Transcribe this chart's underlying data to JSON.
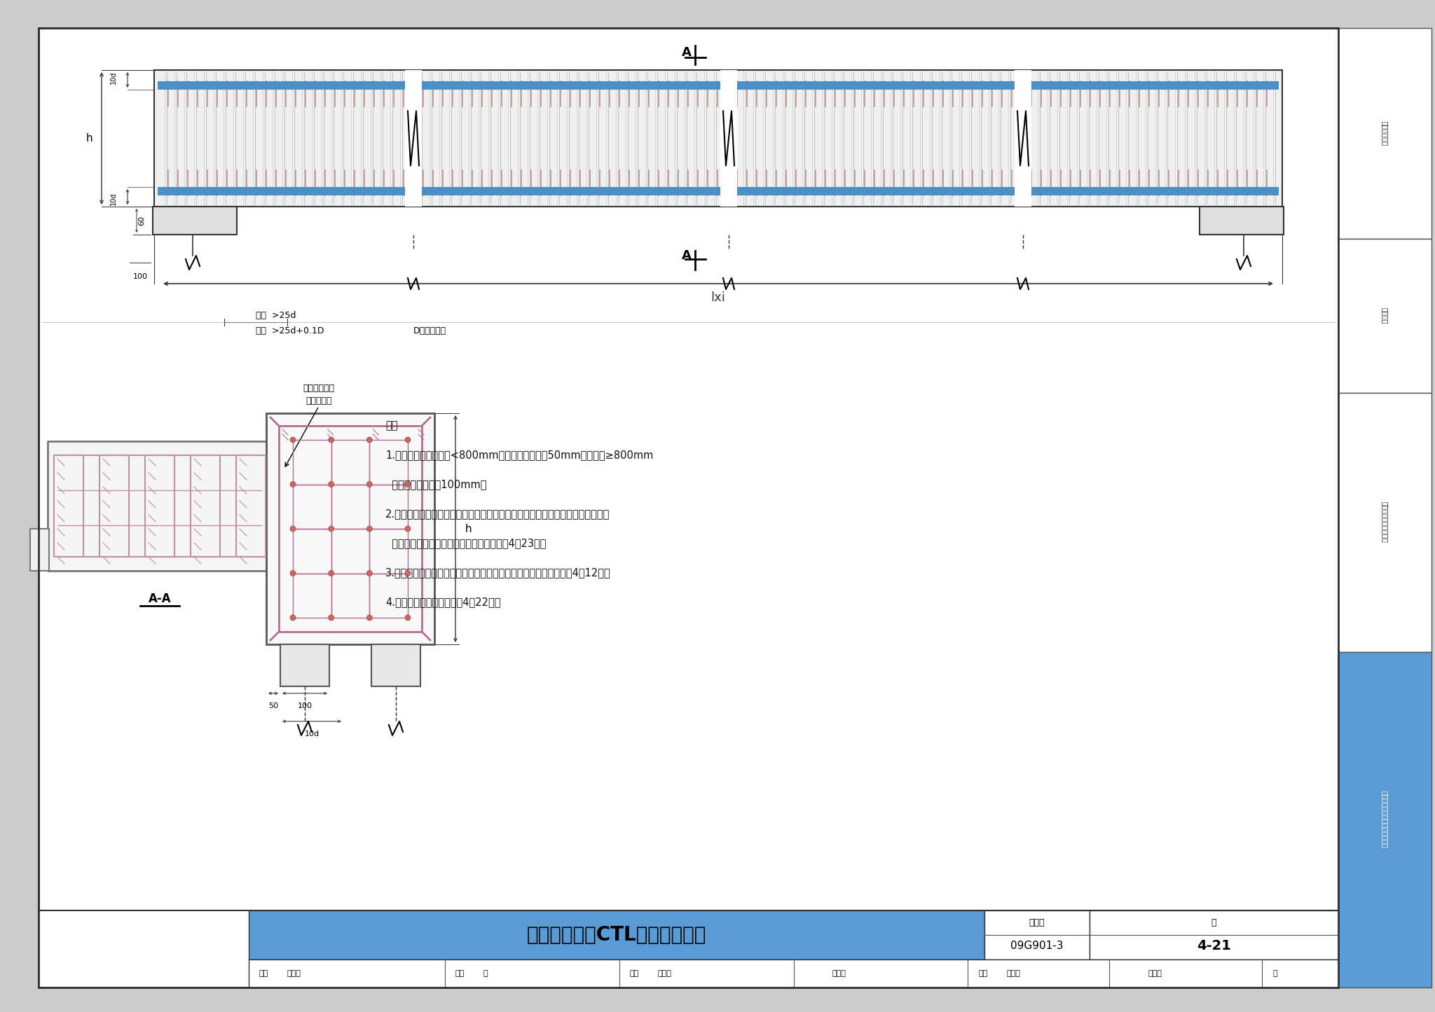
{
  "title": "双排桩承台梁CTL钢筋排布构造",
  "figure_number": "09G901-3",
  "page": "4-21",
  "background_color": "#e8e8e8",
  "drawing_bg": "#ffffff",
  "sidebar_labels": [
    "一般构造要求",
    "筏形基础",
    "箱形基础和地下室结构",
    "独立基础、条形基础、桩基承台"
  ],
  "sidebar_highlighted": 3,
  "blue_color": "#5b9bd5",
  "notes": [
    "注：",
    "1.当桩径或桩截面边长<800mm时，桩顶嵌入承台50mm；当桩径≥800mm",
    "  时，桩顶嵌入承台100mm。",
    "2.当承台之间设置防水底板且承台底板也要求做防水层时，桩顶局部应采用刚性防",
    "  水层，不可采用有机材料的柔性防水层详见4－23页。",
    "3.承台梁截面尺寸及配筋详具体工程的结构设计，拉箍配置要求详见4－12页。",
    "4.桩与承台梁的连接详见第4－22页。"
  ],
  "info_row": "审核 黄志刚  复审 叩  校对 张工文  张工文  设计 王怀元  王怀元  页"
}
